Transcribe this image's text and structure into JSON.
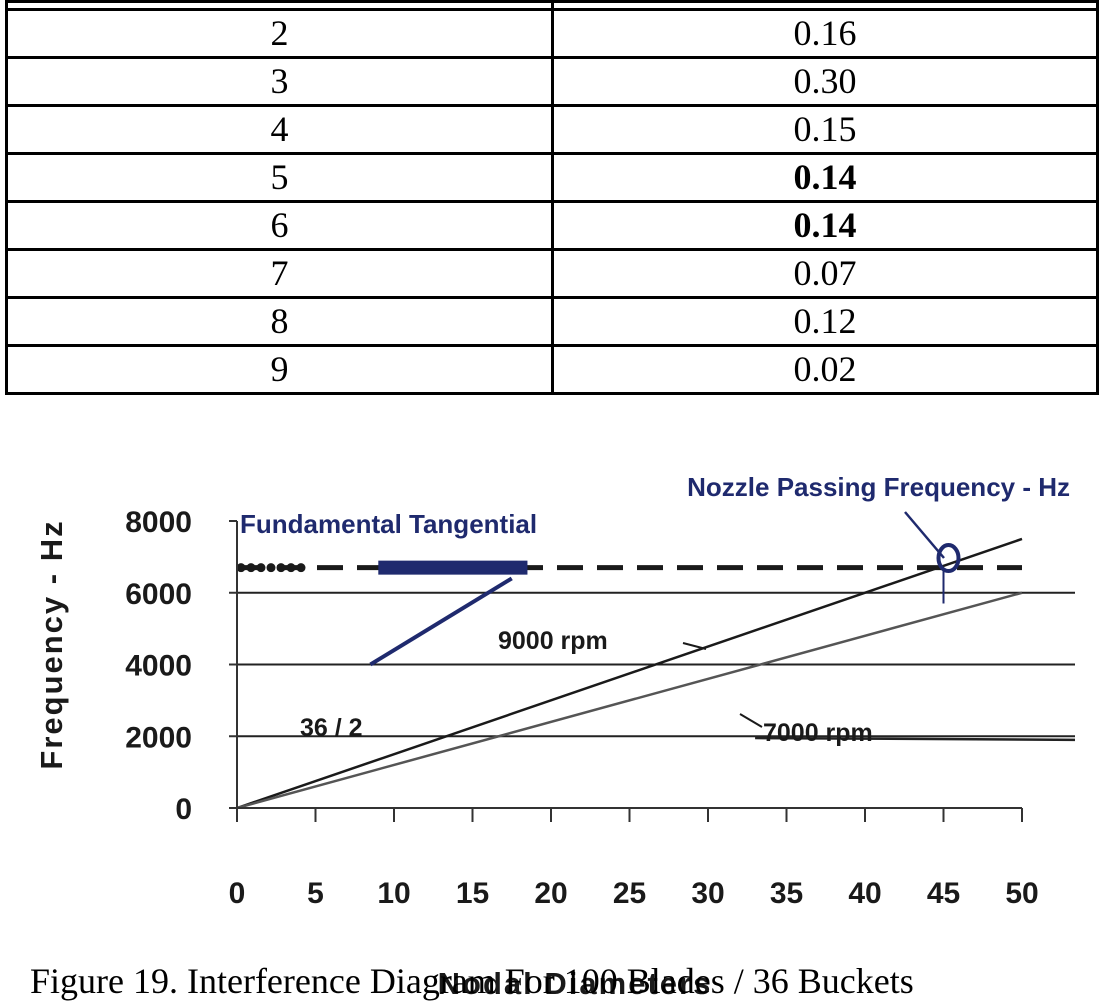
{
  "table": {
    "rows": [
      {
        "a": "2",
        "b": "0.16",
        "bold": false
      },
      {
        "a": "3",
        "b": "0.30",
        "bold": false
      },
      {
        "a": "4",
        "b": "0.15",
        "bold": false
      },
      {
        "a": "5",
        "b": "0.14",
        "bold": true
      },
      {
        "a": "6",
        "b": "0.14",
        "bold": true
      },
      {
        "a": "7",
        "b": "0.07",
        "bold": false
      },
      {
        "a": "8",
        "b": "0.12",
        "bold": false
      },
      {
        "a": "9",
        "b": "0.02",
        "bold": false
      }
    ]
  },
  "chart_data": {
    "type": "line",
    "ylabel": "Frequency - Hz",
    "xlabel": "Nodal Diameters",
    "xlim": [
      0,
      50
    ],
    "ylim": [
      0,
      8000
    ],
    "xticks": [
      "0",
      "5",
      "10",
      "15",
      "20",
      "25",
      "30",
      "35",
      "40",
      "45",
      "50"
    ],
    "yticks": [
      "0",
      "2000",
      "4000",
      "6000",
      "8000"
    ],
    "grid": "horizontal",
    "series": [
      {
        "name": "9000 rpm",
        "x": [
          0,
          50
        ],
        "y": [
          0,
          7500
        ],
        "color": "#1a1a1a"
      },
      {
        "name": "7000 rpm",
        "x": [
          0,
          50
        ],
        "y": [
          0,
          6000
        ],
        "color": "#555555"
      },
      {
        "name": "36 / 2",
        "x": [
          8.5,
          17.5
        ],
        "y": [
          4000,
          6400
        ],
        "color": "#1f2a6e"
      }
    ],
    "reference_line": {
      "y": 6700,
      "x_start": 0,
      "x_end": 50,
      "style": "dashed"
    },
    "annotations": {
      "nozzle_passing": "Nozzle Passing Frequency - Hz",
      "fundamental_tangential": "Fundamental Tangential",
      "rpm_9000": "9000 rpm",
      "rpm_7000": "7000 rpm",
      "ratio": "36 / 2"
    },
    "marker": {
      "x": 45,
      "y": 6800
    }
  },
  "caption": "Figure 19. Interference Diagram For 100 Blades / 36 Buckets"
}
